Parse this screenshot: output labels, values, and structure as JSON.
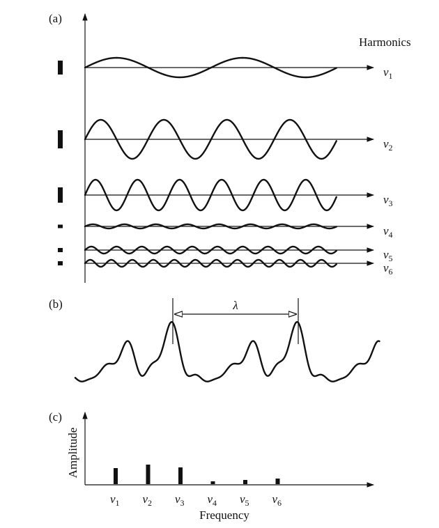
{
  "panels": {
    "a": {
      "label": "(a)",
      "heading": "Harmonics",
      "harmonics": [
        {
          "symbol": "ν",
          "sub": "1",
          "cycles": 2,
          "amplitude": 14,
          "bar": 20
        },
        {
          "symbol": "ν",
          "sub": "2",
          "cycles": 4,
          "amplitude": 28,
          "bar": 26
        },
        {
          "symbol": "ν",
          "sub": "3",
          "cycles": 6,
          "amplitude": 22,
          "bar": 22
        },
        {
          "symbol": "ν",
          "sub": "4",
          "cycles": 8,
          "amplitude": 3,
          "bar": 5
        },
        {
          "symbol": "ν",
          "sub": "5",
          "cycles": 10,
          "amplitude": 5,
          "bar": 6
        },
        {
          "symbol": "ν",
          "sub": "6",
          "cycles": 12,
          "amplitude": 5,
          "bar": 6
        }
      ]
    },
    "b": {
      "label": "(b)",
      "wavelength_symbol": "λ"
    },
    "c": {
      "label": "(c)",
      "ylabel": "Amplitude",
      "xlabel": "Frequency",
      "bars": [
        {
          "symbol": "ν",
          "sub": "1",
          "value": 23
        },
        {
          "symbol": "ν",
          "sub": "2",
          "value": 28
        },
        {
          "symbol": "ν",
          "sub": "3",
          "value": 24
        },
        {
          "symbol": "ν",
          "sub": "4",
          "value": 4
        },
        {
          "symbol": "ν",
          "sub": "5",
          "value": 6
        },
        {
          "symbol": "ν",
          "sub": "6",
          "value": 8
        }
      ]
    }
  }
}
